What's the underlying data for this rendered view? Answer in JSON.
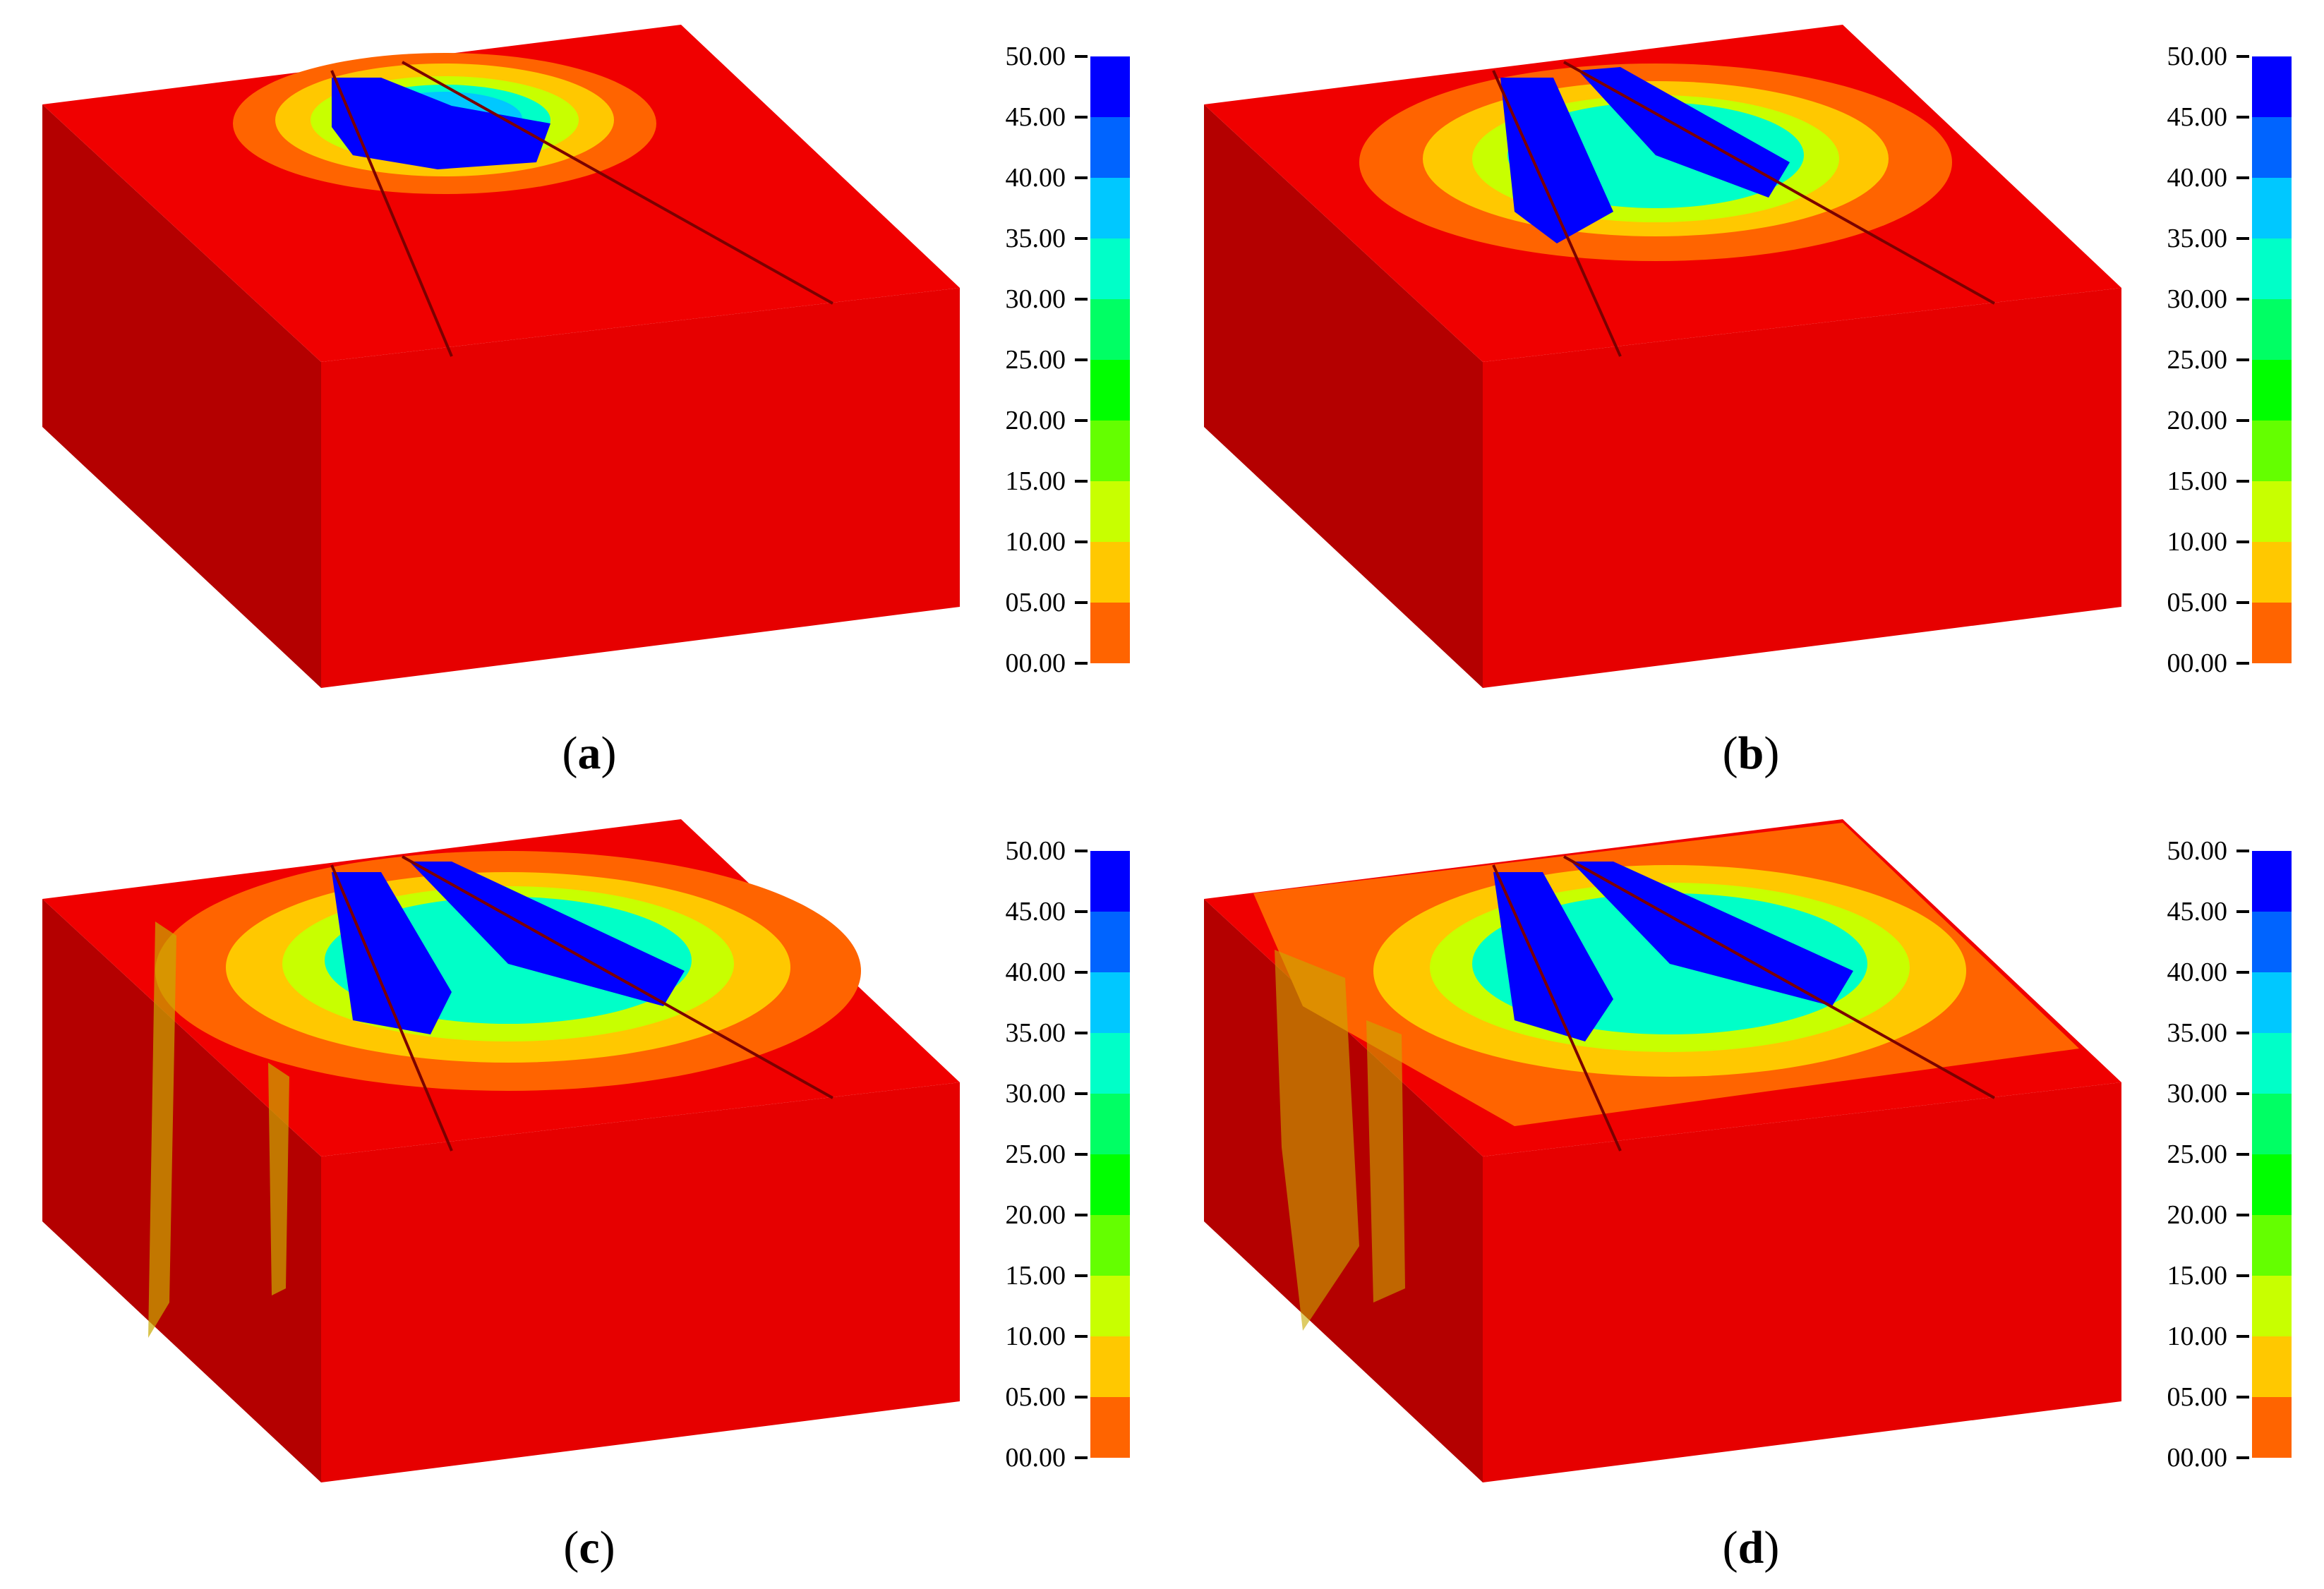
{
  "colorbar": {
    "labels": [
      "50.00",
      "45.00",
      "40.00",
      "35.00",
      "30.00",
      "25.00",
      "20.00",
      "15.00",
      "10.00",
      "05.00",
      "00.00"
    ],
    "colors": [
      "#0000ff",
      "#0064ff",
      "#00c8ff",
      "#00ffc8",
      "#00ff64",
      "#00ff00",
      "#64ff00",
      "#c8ff00",
      "#ffc800",
      "#ff6400",
      "#ff0000"
    ]
  },
  "panels": [
    {
      "id": "a",
      "caption_open": "(",
      "caption_letter": "a",
      "caption_close": ")"
    },
    {
      "id": "b",
      "caption_open": "(",
      "caption_letter": "b",
      "caption_close": ")"
    },
    {
      "id": "c",
      "caption_open": "(",
      "caption_letter": "c",
      "caption_close": ")"
    },
    {
      "id": "d",
      "caption_open": "(",
      "caption_letter": "d",
      "caption_close": ")"
    }
  ],
  "face_colors": {
    "top": "#f00000",
    "front": "#e60000",
    "side": "#b40000"
  }
}
